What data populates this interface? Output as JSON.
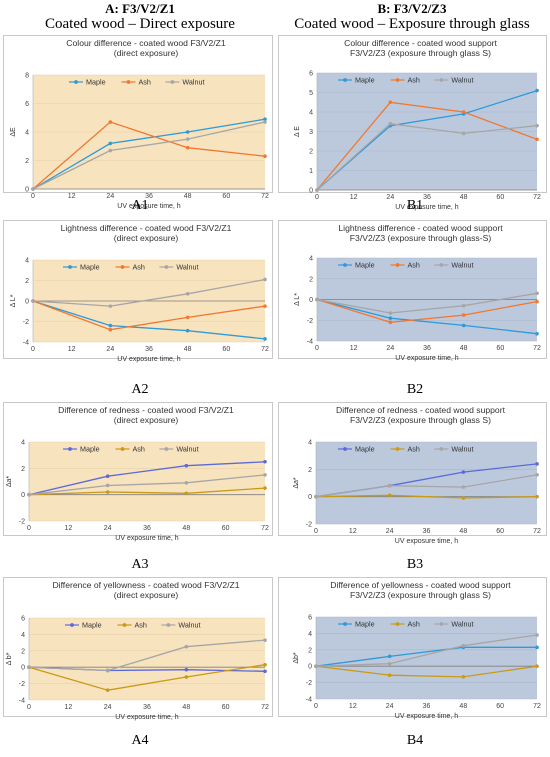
{
  "header": {
    "left_line1": "A: F3/V2/Z1",
    "left_line2": "Coated wood – Direct exposure",
    "right_line1": "B: F3/V2/Z3",
    "right_line2": "Coated wood – Exposure through glass"
  },
  "colors": {
    "maple": "#2e9ad8",
    "maple_purple": "#5b6ad8",
    "ash": "#f07830",
    "ash_olive": "#c99a16",
    "walnut": "#a6a6a6",
    "bg_A": "#f8e3bf",
    "bg_B": "#bcc9dd",
    "axis": "#7f7f7f"
  },
  "chart_data": [
    {
      "panel": "A1",
      "type": "line",
      "title": [
        "Colour difference - coated wood F3/V2/Z1",
        "(direct exposure)"
      ],
      "ylabel": "ΔE",
      "xlabel": "UV exposure time, h",
      "x": [
        0,
        24,
        48,
        72
      ],
      "xticks": [
        0,
        12,
        24,
        36,
        48,
        60,
        72
      ],
      "ylim": [
        0,
        8
      ],
      "yticks": [
        0,
        2,
        4,
        6,
        8
      ],
      "series": [
        {
          "name": "Maple",
          "values": [
            0,
            3.2,
            4.0,
            4.9
          ]
        },
        {
          "name": "Ash",
          "values": [
            0,
            4.7,
            2.9,
            2.3
          ]
        },
        {
          "name": "Walnut",
          "values": [
            0,
            2.7,
            3.5,
            4.7
          ]
        }
      ]
    },
    {
      "panel": "B1",
      "type": "line",
      "title": [
        "Colour difference - coated wood support",
        "F3/V2/Z3 (exposure through glass S)"
      ],
      "ylabel": "Δ E",
      "xlabel": "UV exposure time, h",
      "x": [
        0,
        24,
        48,
        72
      ],
      "xticks": [
        0,
        12,
        24,
        36,
        48,
        60,
        72
      ],
      "ylim": [
        0,
        6
      ],
      "yticks": [
        0,
        1,
        2,
        3,
        4,
        5,
        6
      ],
      "series": [
        {
          "name": "Maple",
          "values": [
            0,
            3.3,
            3.9,
            5.1
          ]
        },
        {
          "name": "Ash",
          "values": [
            0,
            4.5,
            4.0,
            2.6
          ]
        },
        {
          "name": "Walnut",
          "values": [
            0,
            3.4,
            2.9,
            3.3
          ]
        }
      ]
    },
    {
      "panel": "A2",
      "type": "line",
      "title": [
        "Lightness difference - coated wood F3/V2/Z1",
        "(direct exposure)"
      ],
      "ylabel": "Δ L*",
      "xlabel": "UV exposure time, h",
      "x": [
        0,
        24,
        48,
        72
      ],
      "xticks": [
        0,
        12,
        24,
        36,
        48,
        60,
        72
      ],
      "ylim": [
        -4,
        4
      ],
      "yticks": [
        -4,
        -2,
        0,
        2,
        4
      ],
      "series": [
        {
          "name": "Maple",
          "values": [
            0,
            -2.4,
            -2.9,
            -3.7
          ]
        },
        {
          "name": "Ash",
          "values": [
            0,
            -2.8,
            -1.6,
            -0.5
          ]
        },
        {
          "name": "Walnut",
          "values": [
            0,
            -0.5,
            0.7,
            2.1
          ]
        }
      ]
    },
    {
      "panel": "B2",
      "type": "line",
      "title": [
        "Lightness difference - coated wood support",
        "F3/V2/Z3 (exposure through glass-S)"
      ],
      "ylabel": "Δ L*",
      "xlabel": "UV exposure time, h",
      "x": [
        0,
        24,
        48,
        72
      ],
      "xticks": [
        0,
        12,
        24,
        36,
        48,
        60,
        72
      ],
      "ylim": [
        -4,
        4
      ],
      "yticks": [
        -4,
        -2,
        0,
        2,
        4
      ],
      "series": [
        {
          "name": "Maple",
          "values": [
            0,
            -1.8,
            -2.5,
            -3.3
          ]
        },
        {
          "name": "Ash",
          "values": [
            0,
            -2.2,
            -1.5,
            -0.2
          ]
        },
        {
          "name": "Walnut",
          "values": [
            0,
            -1.3,
            -0.6,
            0.6
          ]
        }
      ]
    },
    {
      "panel": "A3",
      "type": "line",
      "title": [
        "Difference of redness - coated wood F3/V2/Z1",
        "(direct exposure)"
      ],
      "ylabel": "Δa*",
      "xlabel": "UV exposure time, h",
      "x": [
        0,
        24,
        48,
        72
      ],
      "xticks": [
        0,
        12,
        24,
        36,
        48,
        60,
        72
      ],
      "ylim": [
        -2,
        4
      ],
      "yticks": [
        -2,
        0,
        2,
        4
      ],
      "series": [
        {
          "name": "Maple",
          "values": [
            0,
            1.4,
            2.2,
            2.5
          ]
        },
        {
          "name": "Ash",
          "values": [
            0,
            0.2,
            0.1,
            0.5
          ]
        },
        {
          "name": "Walnut",
          "values": [
            0,
            0.7,
            0.9,
            1.5
          ]
        }
      ]
    },
    {
      "panel": "B3",
      "type": "line",
      "title": [
        "Difference of redness - coated wood support",
        "F3/V2/Z3 (exposure through glass S)"
      ],
      "ylabel": "Δa*",
      "xlabel": "UV exposure time, h",
      "x": [
        0,
        24,
        48,
        72
      ],
      "xticks": [
        0,
        12,
        24,
        36,
        48,
        60,
        72
      ],
      "ylim": [
        -2,
        4
      ],
      "yticks": [
        -2,
        0,
        2,
        4
      ],
      "series": [
        {
          "name": "Maple",
          "values": [
            0,
            0.8,
            1.8,
            2.4
          ]
        },
        {
          "name": "Ash",
          "values": [
            0,
            0.1,
            -0.1,
            0.0
          ]
        },
        {
          "name": "Walnut",
          "values": [
            0,
            0.8,
            0.7,
            1.6
          ]
        }
      ]
    },
    {
      "panel": "A4",
      "type": "line",
      "title": [
        "Difference of yellowness - coated wood F3/V2/Z1",
        "(direct exposure)"
      ],
      "ylabel": "Δ b*",
      "xlabel": "UV exposure time, h",
      "x": [
        0,
        24,
        48,
        72
      ],
      "xticks": [
        0,
        12,
        24,
        36,
        48,
        60,
        72
      ],
      "ylim": [
        -4,
        6
      ],
      "yticks": [
        -4,
        -2,
        0,
        2,
        4,
        6
      ],
      "series": [
        {
          "name": "Maple",
          "values": [
            0,
            -0.4,
            -0.3,
            -0.5
          ]
        },
        {
          "name": "Ash",
          "values": [
            0,
            -2.8,
            -1.2,
            0.3
          ]
        },
        {
          "name": "Walnut",
          "values": [
            0,
            -0.4,
            2.5,
            3.3
          ]
        }
      ]
    },
    {
      "panel": "B4",
      "type": "line",
      "title": [
        "Difference of yellowness - coated wood support",
        "F3/V2/Z3 (exposure through glass S)"
      ],
      "ylabel": "Δb*",
      "xlabel": "UV exposure time, h",
      "x": [
        0,
        24,
        48,
        72
      ],
      "xticks": [
        0,
        12,
        24,
        36,
        48,
        60,
        72
      ],
      "ylim": [
        -4,
        6
      ],
      "yticks": [
        -4,
        -2,
        0,
        2,
        4,
        6
      ],
      "series": [
        {
          "name": "Maple",
          "values": [
            0,
            1.2,
            2.3,
            2.3
          ]
        },
        {
          "name": "Ash",
          "values": [
            0,
            -1.1,
            -1.3,
            0.0
          ]
        },
        {
          "name": "Walnut",
          "values": [
            0,
            0.3,
            2.5,
            3.8
          ]
        }
      ]
    }
  ]
}
